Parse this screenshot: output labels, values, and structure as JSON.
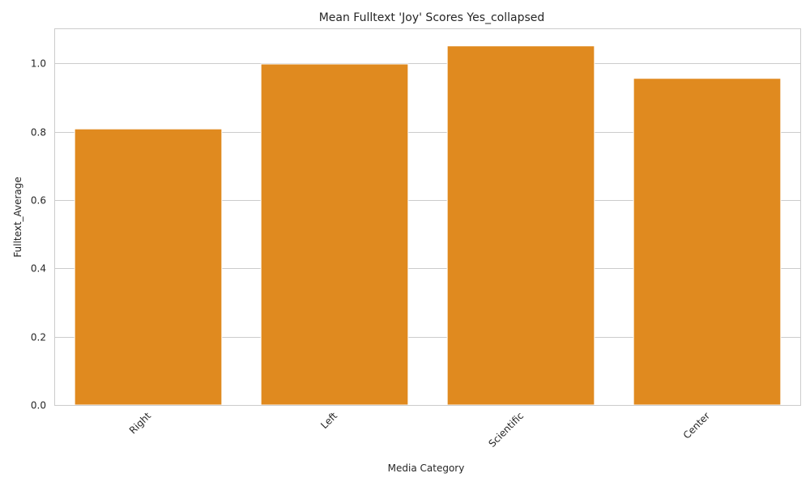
{
  "chart_data": {
    "type": "bar",
    "title": "Mean Fulltext 'Joy' Scores Yes_collapsed",
    "xlabel": "Media Category",
    "ylabel": "Fulltext_Average",
    "categories": [
      "Right",
      "Left",
      "Scientific",
      "Center"
    ],
    "values": [
      0.808,
      0.998,
      1.051,
      0.956
    ],
    "ylim": [
      0,
      1.1
    ],
    "yticks": [
      0.0,
      0.2,
      0.4,
      0.6,
      0.8,
      1.0
    ],
    "ytick_labels": [
      "0.0",
      "0.2",
      "0.4",
      "0.6",
      "0.8",
      "1.0"
    ],
    "grid": "horizontal",
    "bar_color": "#e08a1f",
    "xtick_rotation": 45
  }
}
